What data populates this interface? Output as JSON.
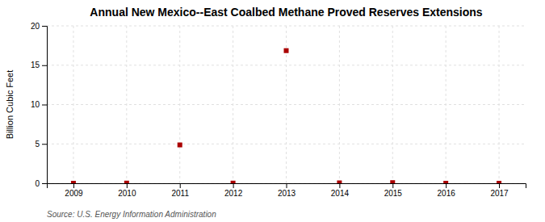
{
  "chart_data": {
    "type": "scatter",
    "title": "Annual New Mexico--East Coalbed Methane Proved Reserves Extensions",
    "ylabel": "Billion Cubic Feet",
    "source": "Source: U.S. Energy Information Administration",
    "x": [
      2009,
      2010,
      2011,
      2012,
      2013,
      2014,
      2015,
      2016,
      2017
    ],
    "values": [
      0.0,
      0.02,
      4.87,
      0.02,
      16.85,
      0.05,
      0.08,
      0.0,
      0.0
    ],
    "color": "#aa0000",
    "marker": "square",
    "xlim": [
      2008.5,
      2017.5
    ],
    "xticks": [
      2009,
      2010,
      2011,
      2012,
      2013,
      2014,
      2015,
      2016,
      2017
    ],
    "ylim": [
      0,
      20
    ],
    "yticks": [
      0,
      5,
      10,
      15,
      20
    ],
    "grid": true
  }
}
